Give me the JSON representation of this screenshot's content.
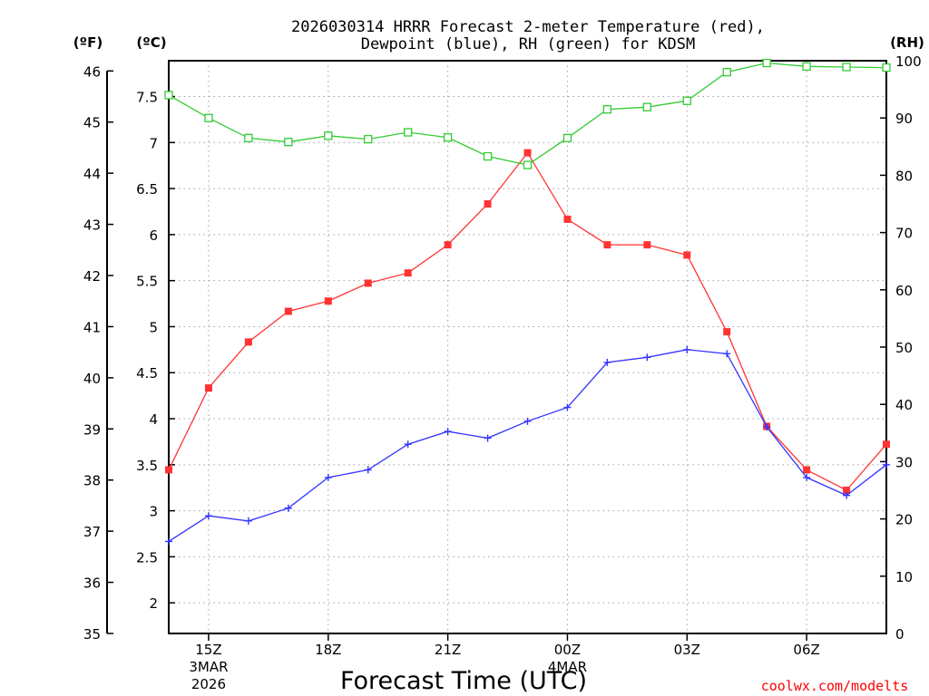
{
  "chart_data": {
    "type": "line",
    "title_line1": "2026030314 HRRR Forecast 2-meter Temperature (red),",
    "title_line2": "Dewpoint (blue), RH (green) for KDSM",
    "xlabel": "Forecast Time (UTC)",
    "credit": "coolwx.com/modelts",
    "unit_f": "(ºF)",
    "unit_c": "(ºC)",
    "unit_rh": "(RH)",
    "x": [
      14,
      15,
      16,
      17,
      18,
      19,
      20,
      21,
      22,
      23,
      24,
      25,
      26,
      27,
      28,
      29,
      30,
      31,
      32
    ],
    "xlim": [
      14,
      32
    ],
    "x_ticks": [
      {
        "x": 15,
        "label": "15Z",
        "sub1": "3MAR",
        "sub2": "2026"
      },
      {
        "x": 18,
        "label": "18Z",
        "sub1": "",
        "sub2": ""
      },
      {
        "x": 21,
        "label": "21Z",
        "sub1": "",
        "sub2": ""
      },
      {
        "x": 24,
        "label": "00Z",
        "sub1": "4MAR",
        "sub2": ""
      },
      {
        "x": 27,
        "label": "03Z",
        "sub1": "",
        "sub2": ""
      },
      {
        "x": 30,
        "label": "06Z",
        "sub1": "",
        "sub2": ""
      }
    ],
    "axis_f": {
      "range": [
        35,
        46.2
      ],
      "ticks": [
        "35",
        "36",
        "37",
        "38",
        "39",
        "40",
        "41",
        "42",
        "43",
        "44",
        "45",
        "46"
      ]
    },
    "axis_c": {
      "range": [
        1.667,
        7.889
      ],
      "ticks": [
        "2",
        "2.5",
        "3",
        "3.5",
        "4",
        "4.5",
        "5",
        "5.5",
        "6",
        "6.5",
        "7",
        "7.5"
      ]
    },
    "axis_rh": {
      "range": [
        0,
        100
      ],
      "ticks": [
        "0",
        "10",
        "20",
        "30",
        "40",
        "50",
        "60",
        "70",
        "80",
        "90",
        "100"
      ]
    },
    "series": [
      {
        "name": "Temperature",
        "unit": "F",
        "color": "#ff3333",
        "marker": "filled-square",
        "values": [
          38.2,
          39.8,
          40.7,
          41.3,
          41.5,
          41.85,
          42.05,
          42.6,
          43.4,
          44.4,
          43.1,
          42.6,
          42.6,
          42.4,
          40.9,
          39.05,
          38.2,
          37.8,
          38.7
        ]
      },
      {
        "name": "Dewpoint",
        "unit": "F",
        "color": "#3333ff",
        "marker": "plus",
        "values": [
          36.8,
          37.3,
          37.2,
          37.45,
          38.05,
          38.2,
          38.7,
          38.95,
          38.82,
          39.15,
          39.42,
          40.3,
          40.4,
          40.55,
          40.47,
          39.04,
          38.05,
          37.7,
          38.3
        ]
      },
      {
        "name": "RH",
        "unit": "%",
        "color": "#33cc33",
        "marker": "open-square",
        "values": [
          94,
          90,
          86.5,
          85.8,
          86.9,
          86.3,
          87.5,
          86.6,
          83.3,
          81.8,
          86.5,
          91.5,
          91.9,
          93,
          98,
          99.6,
          99,
          98.9,
          98.8
        ]
      }
    ],
    "grid": true
  }
}
